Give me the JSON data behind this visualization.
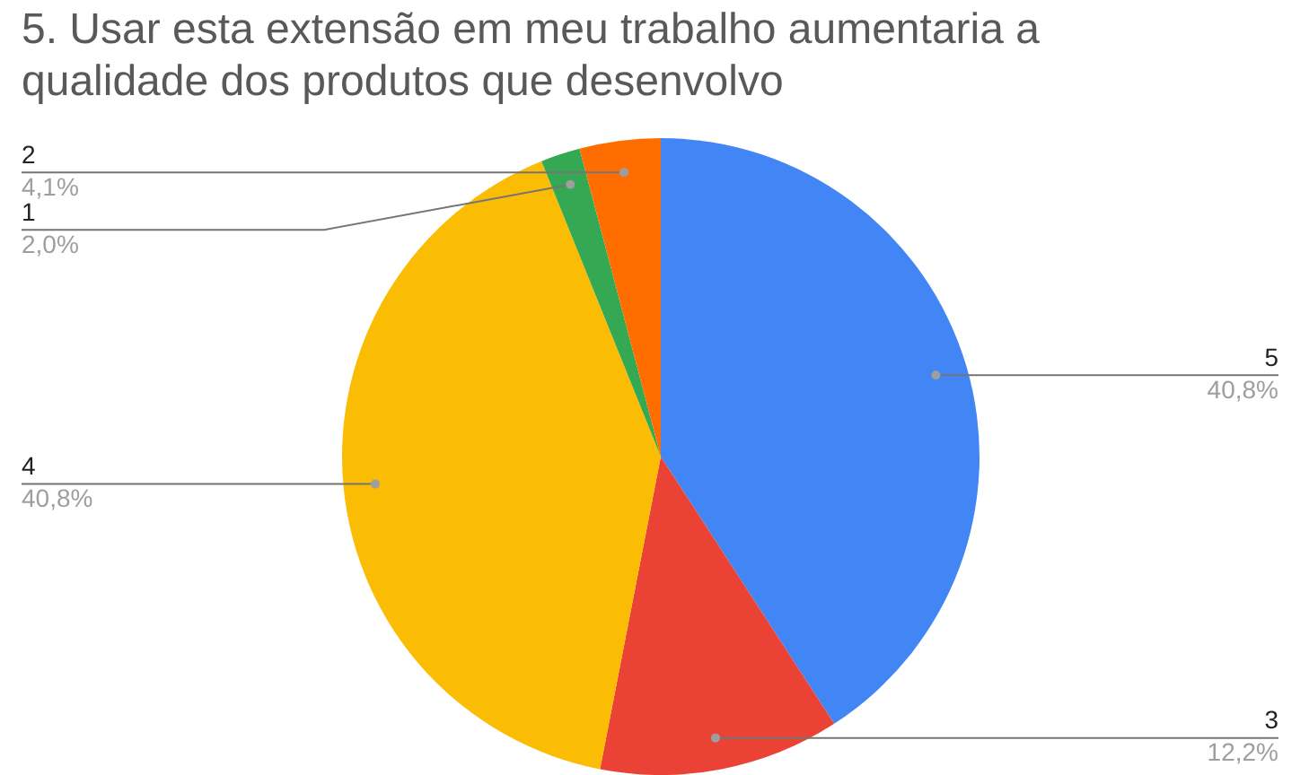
{
  "chart_data": {
    "type": "pie",
    "title": "5. Usar esta extensão em meu trabalho aumentaria a qualidade dos produtos que desenvolvo",
    "categories": [
      "5",
      "3",
      "4",
      "1",
      "2"
    ],
    "values": [
      40.8,
      12.2,
      40.8,
      2.0,
      4.1
    ],
    "value_labels": [
      "40,8%",
      "12,2%",
      "40,8%",
      "2,0%",
      "4,1%"
    ],
    "colors": [
      "#4285f4",
      "#ea4335",
      "#fbbc04",
      "#34a853",
      "#ff6d01"
    ],
    "legend": false
  }
}
